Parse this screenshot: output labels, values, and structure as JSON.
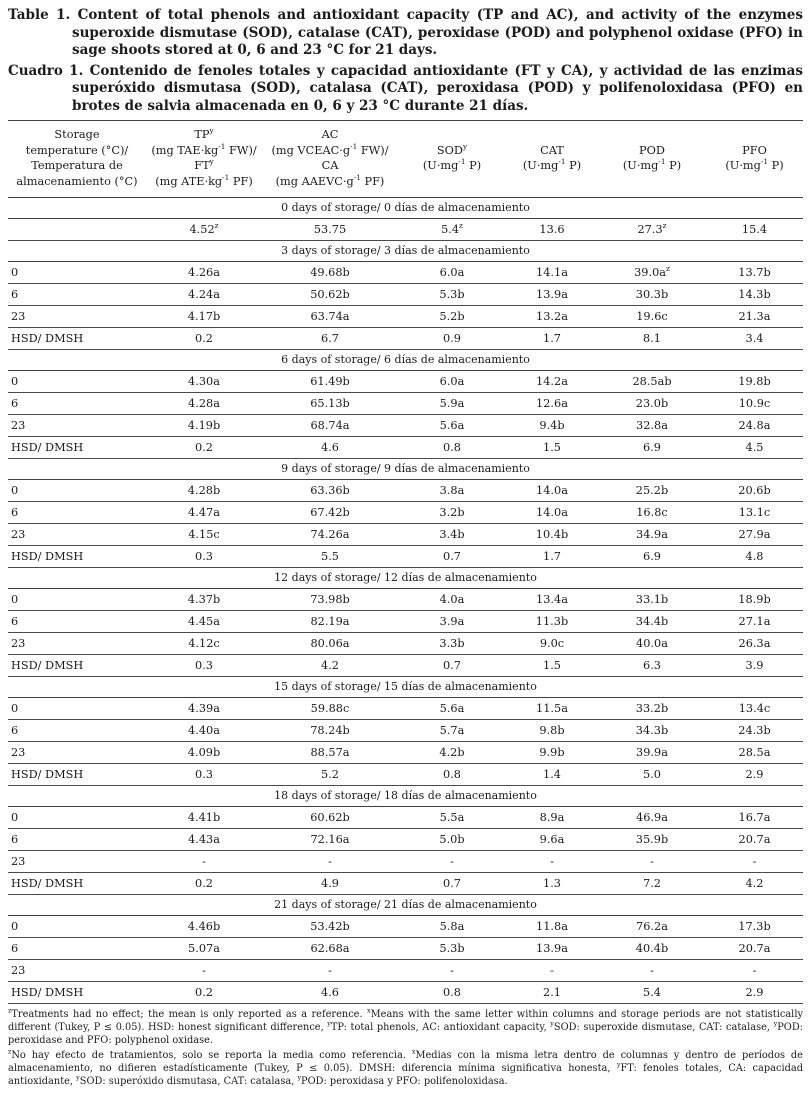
{
  "captions": [
    {
      "label": "Table 1.",
      "text": "Content of total phenols and antioxidant capacity (TP and AC), and activity of the enzymes superoxide dismutase (SOD), catalase (CAT), peroxidase (POD) and polyphenol oxidase (PFO) in sage shoots stored at 0, 6 and 23 °C for 21 days."
    },
    {
      "label": "Cuadro 1.",
      "text": "Contenido de fenoles totales y capacidad antioxidante (FT y CA), y actividad de las enzimas superóxido dismutasa (SOD), catalasa (CAT), peroxidasa (POD) y polifenoloxidasa (PFO) en brotes de salvia almacenada en 0, 6 y 23 °C durante 21 días."
    }
  ],
  "table": {
    "columns": [
      {
        "lines": [
          "Storage",
          "temperature (°C)/",
          "Temperatura de",
          "almacenamiento (°C)"
        ]
      },
      {
        "lines": [
          "TP^{y}",
          "(mg TAE·kg^{-1} FW)/",
          "FT^{y}",
          "(mg ATE·kg^{-1} PF)"
        ]
      },
      {
        "lines": [
          "AC",
          "(mg VCEAC·g^{-1} FW)/",
          "CA",
          "(mg AAEVC·g^{-1} PF)"
        ]
      },
      {
        "lines": [
          "SOD^{y}",
          "(U·mg^{-1} P)"
        ]
      },
      {
        "lines": [
          "CAT",
          "(U·mg^{-1} P)"
        ]
      },
      {
        "lines": [
          "POD",
          "(U·mg^{-1} P)"
        ]
      },
      {
        "lines": [
          "PFO",
          "(U·mg^{-1} P)"
        ]
      }
    ],
    "sections": [
      {
        "header": "0 days of storage/ 0 días de almacenamiento",
        "rows": [
          [
            "",
            "4.52^{z}",
            "53.75",
            "5.4^{z}",
            "13.6",
            "27.3^{z}",
            "15.4"
          ]
        ]
      },
      {
        "header": "3 days of storage/ 3 días de almacenamiento",
        "rows": [
          [
            "0",
            "4.26a",
            "49.68b",
            "6.0a",
            "14.1a",
            "39.0a^{z}",
            "13.7b"
          ],
          [
            "6",
            "4.24a",
            "50.62b",
            "5.3b",
            "13.9a",
            "30.3b",
            "14.3b"
          ],
          [
            "23",
            "4.17b",
            "63.74a",
            "5.2b",
            "13.2a",
            "19.6c",
            "21.3a"
          ],
          [
            "HSD/ DMSH",
            "0.2",
            "6.7",
            "0.9",
            "1.7",
            "8.1",
            "3.4"
          ]
        ]
      },
      {
        "header": "6 days of storage/ 6 días de almacenamiento",
        "rows": [
          [
            "0",
            "4.30a",
            "61.49b",
            "6.0a",
            "14.2a",
            "28.5ab",
            "19.8b"
          ],
          [
            "6",
            "4.28a",
            "65.13b",
            "5.9a",
            "12.6a",
            "23.0b",
            "10.9c"
          ],
          [
            "23",
            "4.19b",
            "68.74a",
            "5.6a",
            "9.4b",
            "32.8a",
            "24.8a"
          ],
          [
            "HSD/ DMSH",
            "0.2",
            "4.6",
            "0.8",
            "1.5",
            "6.9",
            "4.5"
          ]
        ]
      },
      {
        "header": "9 days of storage/ 9 días de almacenamiento",
        "rows": [
          [
            "0",
            "4.28b",
            "63.36b",
            "3.8a",
            "14.0a",
            "25.2b",
            "20.6b"
          ],
          [
            "6",
            "4.47a",
            "67.42b",
            "3.2b",
            "14.0a",
            "16.8c",
            "13.1c"
          ],
          [
            "23",
            "4.15c",
            "74.26a",
            "3.4b",
            "10.4b",
            "34.9a",
            "27.9a"
          ],
          [
            "HSD/ DMSH",
            "0.3",
            "5.5",
            "0.7",
            "1.7",
            "6.9",
            "4.8"
          ]
        ]
      },
      {
        "header": "12 days of storage/ 12 días de almacenamiento",
        "rows": [
          [
            "0",
            "4.37b",
            "73.98b",
            "4.0a",
            "13.4a",
            "33.1b",
            "18.9b"
          ],
          [
            "6",
            "4.45a",
            "82.19a",
            "3.9a",
            "11.3b",
            "34.4b",
            "27.1a"
          ],
          [
            "23",
            "4.12c",
            "80.06a",
            "3.3b",
            "9.0c",
            "40.0a",
            "26.3a"
          ],
          [
            "HSD/ DMSH",
            "0.3",
            "4.2",
            "0.7",
            "1.5",
            "6.3",
            "3.9"
          ]
        ]
      },
      {
        "header": "15 days of storage/ 15 días de almacenamiento",
        "rows": [
          [
            "0",
            "4.39a",
            "59.88c",
            "5.6a",
            "11.5a",
            "33.2b",
            "13.4c"
          ],
          [
            "6",
            "4.40a",
            "78.24b",
            "5.7a",
            "9.8b",
            "34.3b",
            "24.3b"
          ],
          [
            "23",
            "4.09b",
            "88.57a",
            "4.2b",
            "9.9b",
            "39.9a",
            "28.5a"
          ],
          [
            "HSD/ DMSH",
            "0.3",
            "5.2",
            "0.8",
            "1.4",
            "5.0",
            "2.9"
          ]
        ]
      },
      {
        "header": "18 days of storage/ 18 días de almacenamiento",
        "rows": [
          [
            "0",
            "4.41b",
            "60.62b",
            "5.5a",
            "8.9a",
            "46.9a",
            "16.7a"
          ],
          [
            "6",
            "4.43a",
            "72.16a",
            "5.0b",
            "9.6a",
            "35.9b",
            "20.7a"
          ],
          [
            "23",
            "-",
            "-",
            "-",
            "-",
            "-",
            "-"
          ],
          [
            "HSD/ DMSH",
            "0.2",
            "4.9",
            "0.7",
            "1.3",
            "7.2",
            "4.2"
          ]
        ]
      },
      {
        "header": "21 days of storage/ 21 días de almacenamiento",
        "rows": [
          [
            "0",
            "4.46b",
            "53.42b",
            "5.8a",
            "11.8a",
            "76.2a",
            "17.3b"
          ],
          [
            "6",
            "5.07a",
            "62.68a",
            "5.3b",
            "13.9a",
            "40.4b",
            "20.7a"
          ],
          [
            "23",
            "-",
            "-",
            "-",
            "-",
            "-",
            "-"
          ],
          [
            "HSD/ DMSH",
            "0.2",
            "4.6",
            "0.8",
            "2.1",
            "5.4",
            "2.9"
          ]
        ]
      }
    ]
  },
  "footnotes": [
    "^{z}Treatments had no effect; the mean is only reported as a reference. ^{x}Means with the same letter within columns and storage periods are not statistically different (Tukey, P ≤ 0.05). HSD: honest significant difference, ^{y}TP: total phenols, AC: antioxidant capacity, ^{y}SOD: superoxide dismutase, CAT: catalase, ^{y}POD: peroxidase and PFO: polyphenol oxidase.",
    "^{z}No hay efecto de tratamientos, solo se reporta la media como referencia. ^{x}Medias con la misma letra dentro de columnas y dentro de períodos de almacenamiento, no difieren estadísticamente (Tukey, P ≤ 0.05). DMSH: diferencia mínima significativa honesta, ^{y}FT: fenoles totales, CA: capacidad antioxidante, ^{y}SOD: superóxido dismutasa, CAT: catalasa, ^{y}POD: peroxidasa y PFO: polifenoloxidasa."
  ]
}
